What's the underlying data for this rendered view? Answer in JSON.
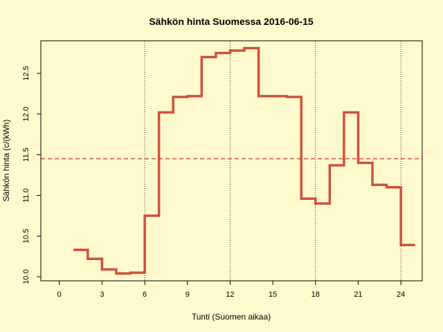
{
  "chart_data": {
    "type": "line",
    "step": true,
    "title": "Sähkön hinta Suomessa 2016-06-15",
    "xlabel": "Tunti (Suomen aikaa)",
    "ylabel": "Sähkön hinta (c/(kWh)",
    "xlim": [
      -1.3,
      25.5
    ],
    "ylim": [
      9.95,
      12.9
    ],
    "x_ticks": [
      0,
      3,
      6,
      9,
      12,
      15,
      18,
      21,
      24
    ],
    "y_ticks": [
      10.0,
      10.5,
      11.0,
      11.5,
      12.0,
      12.5
    ],
    "x_tick_labels": [
      "0",
      "3",
      "6",
      "9",
      "12",
      "15",
      "18",
      "21",
      "24"
    ],
    "y_tick_labels": [
      "10.0",
      "10.5",
      "11.0",
      "11.5",
      "12.0",
      "12.5"
    ],
    "vertical_reference_lines": [
      6,
      12,
      18,
      24
    ],
    "mean_line": 11.45,
    "series": [
      {
        "color": "#D0503C",
        "x": [
          1,
          2,
          3,
          4,
          5,
          6,
          7,
          8,
          9,
          10,
          11,
          12,
          13,
          14,
          15,
          16,
          17,
          18,
          19,
          20,
          21,
          22,
          23,
          24,
          25
        ],
        "values": [
          10.33,
          10.22,
          10.09,
          10.04,
          10.05,
          10.75,
          12.02,
          12.21,
          12.22,
          12.7,
          12.75,
          12.78,
          12.81,
          12.22,
          12.22,
          12.21,
          10.96,
          10.9,
          11.37,
          12.02,
          11.4,
          11.13,
          11.1,
          10.39,
          10.39
        ]
      }
    ],
    "mean_line_color": "#D0503C",
    "grid": false,
    "legend": "none"
  }
}
